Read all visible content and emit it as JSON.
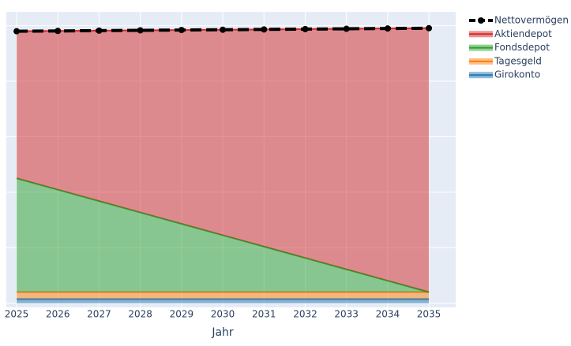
{
  "chart_data": {
    "type": "stacked_area",
    "x_label": "Jahr",
    "x": [
      2025,
      2026,
      2027,
      2028,
      2029,
      2030,
      2031,
      2032,
      2033,
      2034,
      2035
    ],
    "xlim": [
      2024.75,
      2035.65
    ],
    "xticks": [
      2025,
      2026,
      2027,
      2028,
      2029,
      2030,
      2031,
      2032,
      2033,
      2034,
      2035
    ],
    "ylim": [
      -1500,
      105000
    ],
    "yticks": [
      0,
      20000,
      40000,
      60000,
      80000,
      100000
    ],
    "show_ytick_labels": false,
    "grid": true,
    "legend": "right",
    "series": [
      {
        "name": "Girokonto",
        "color": "#1f77b4",
        "values": [
          1500,
          1500,
          1500,
          1500,
          1500,
          1500,
          1500,
          1500,
          1500,
          1500,
          1500
        ]
      },
      {
        "name": "Tagesgeld",
        "color": "#ff7f0e",
        "values": [
          2500,
          2500,
          2500,
          2500,
          2500,
          2500,
          2500,
          2500,
          2500,
          2500,
          2500
        ]
      },
      {
        "name": "Fondsdepot",
        "color": "#2ca02c",
        "values": [
          41000,
          36900,
          32800,
          28700,
          24600,
          20500,
          16400,
          12300,
          8200,
          4100,
          0
        ]
      },
      {
        "name": "Aktiendepot",
        "color": "#d62728",
        "values": [
          53000,
          57210,
          61420,
          65630,
          69840,
          74050,
          78260,
          82470,
          86680,
          90890,
          95100
        ]
      }
    ],
    "total_line": {
      "name": "Nettovermögen",
      "color": "#000000",
      "values": [
        98000,
        98110,
        98220,
        98330,
        98440,
        98550,
        98660,
        98770,
        98880,
        98990,
        99100
      ]
    }
  }
}
